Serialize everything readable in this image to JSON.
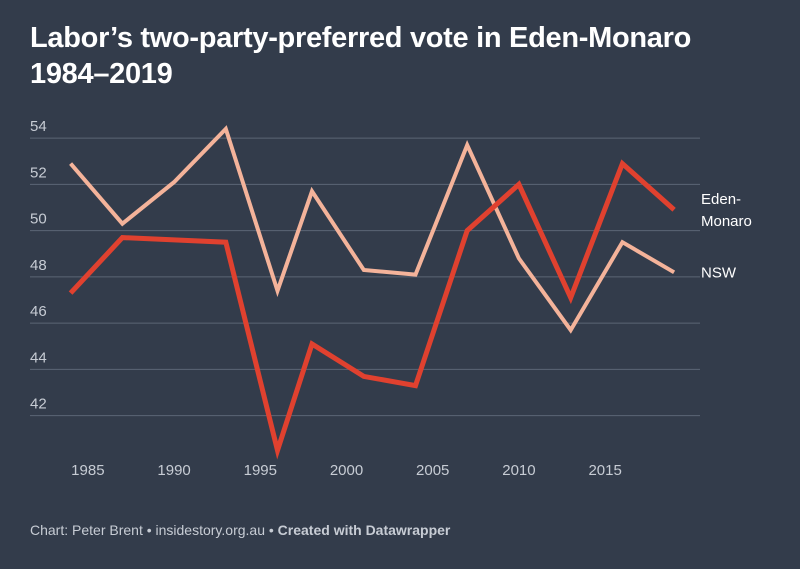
{
  "title_line1": "Labor’s two-party-preferred vote in Eden-Monaro",
  "title_line2": "1984–2019",
  "footer": {
    "source": "Chart: Peter Brent",
    "separator": "•",
    "site": "insidestory.org.au",
    "credit": "Created with Datawrapper"
  },
  "colors": {
    "background": "#333c4b",
    "grid": "#5c6575",
    "tick_text": "#c7ccd4",
    "eden_monaro": "#e0412f",
    "nsw": "#f4b39a"
  },
  "chart_data": {
    "type": "line",
    "xlim": [
      1983.5,
      2020.5
    ],
    "ylim": [
      40.3,
      55
    ],
    "x_ticks": [
      1985,
      1990,
      1995,
      2000,
      2005,
      2010,
      2015
    ],
    "y_ticks": [
      42,
      44,
      46,
      48,
      50,
      52,
      54
    ],
    "grid": true,
    "series": [
      {
        "name": "Eden-Monaro",
        "label_lines": [
          "Eden-",
          "Monaro"
        ],
        "color": "#e0412f",
        "x": [
          1984,
          1987,
          1990,
          1993,
          1996,
          1998,
          2001,
          2004,
          2007,
          2010,
          2013,
          2016,
          2019
        ],
        "values": [
          47.3,
          49.7,
          49.6,
          49.5,
          40.5,
          45.1,
          43.7,
          43.3,
          50.0,
          52.0,
          47.1,
          52.9,
          50.9
        ]
      },
      {
        "name": "NSW",
        "label_lines": [
          "NSW"
        ],
        "color": "#f4b39a",
        "x": [
          1984,
          1987,
          1990,
          1993,
          1996,
          1998,
          2001,
          2004,
          2007,
          2010,
          2013,
          2016,
          2019
        ],
        "values": [
          52.9,
          50.3,
          52.1,
          54.4,
          47.4,
          51.7,
          48.3,
          48.1,
          53.7,
          48.8,
          45.7,
          49.5,
          48.2
        ]
      }
    ]
  }
}
